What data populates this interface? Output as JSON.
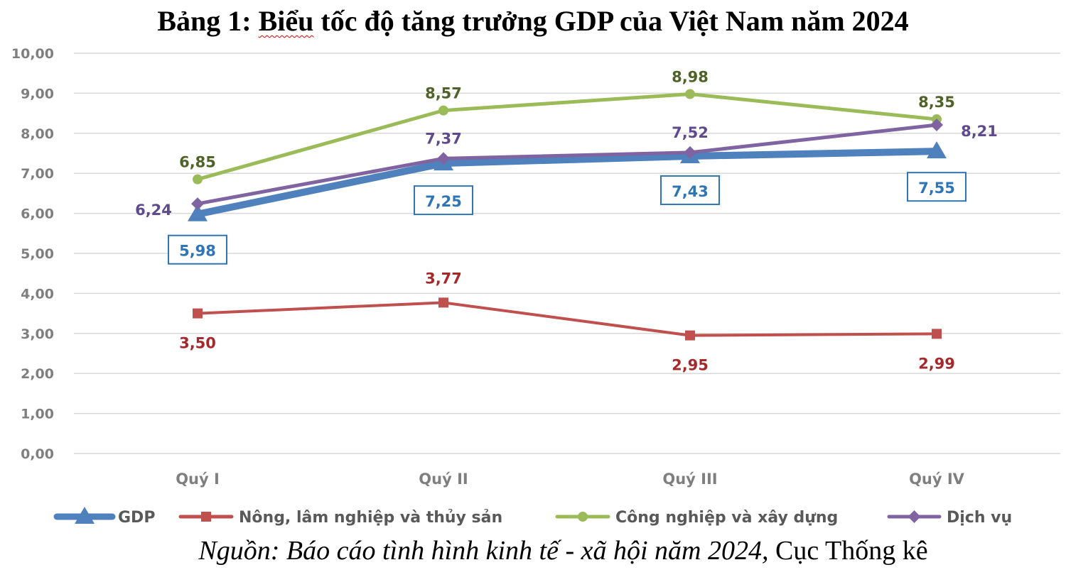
{
  "title_prefix": "Bảng 1: ",
  "title_underlined": "Biểu",
  "title_rest": " tốc độ tăng trưởng GDP của Việt Nam năm 2024",
  "source_italic": "Nguồn: Báo cáo tình hình kinh tế - xã hội năm 2024,",
  "source_normal": " Cục Thống kê",
  "chart_data": {
    "type": "line",
    "categories": [
      "Quý I",
      "Quý II",
      "Quý III",
      "Quý IV"
    ],
    "ylim": [
      0,
      10
    ],
    "yticks": [
      "0,00",
      "1,00",
      "2,00",
      "3,00",
      "4,00",
      "5,00",
      "6,00",
      "7,00",
      "8,00",
      "9,00",
      "10,00"
    ],
    "grid": true,
    "legend_position": "bottom",
    "series": [
      {
        "name": "GDP",
        "values": [
          5.98,
          7.25,
          7.43,
          7.55
        ],
        "labels": [
          "5,98",
          "7,25",
          "7,43",
          "7,55"
        ],
        "color": "#4f81bd",
        "marker": "triangle"
      },
      {
        "name": "Nông, lâm nghiệp và thủy sản",
        "values": [
          3.5,
          3.77,
          2.95,
          2.99
        ],
        "labels": [
          "3,50",
          "3,77",
          "2,95",
          "2,99"
        ],
        "color": "#c0504d",
        "marker": "square"
      },
      {
        "name": "Công nghiệp và xây dựng",
        "values": [
          6.85,
          8.57,
          8.98,
          8.35
        ],
        "labels": [
          "6,85",
          "8,57",
          "8,98",
          "8,35"
        ],
        "color": "#9bbb59",
        "marker": "circle"
      },
      {
        "name": "Dịch vụ",
        "values": [
          6.24,
          7.37,
          7.52,
          8.21
        ],
        "labels": [
          "6,24",
          "7,37",
          "7,52",
          "8,21"
        ],
        "color": "#8064a2",
        "marker": "diamond"
      }
    ]
  },
  "colors": {
    "gdp_label": "#2e75b6",
    "agri_label": "#a5282a",
    "industry_label": "#4f6228",
    "service_label": "#5f4b8b",
    "grid": "#d9d9d9"
  }
}
